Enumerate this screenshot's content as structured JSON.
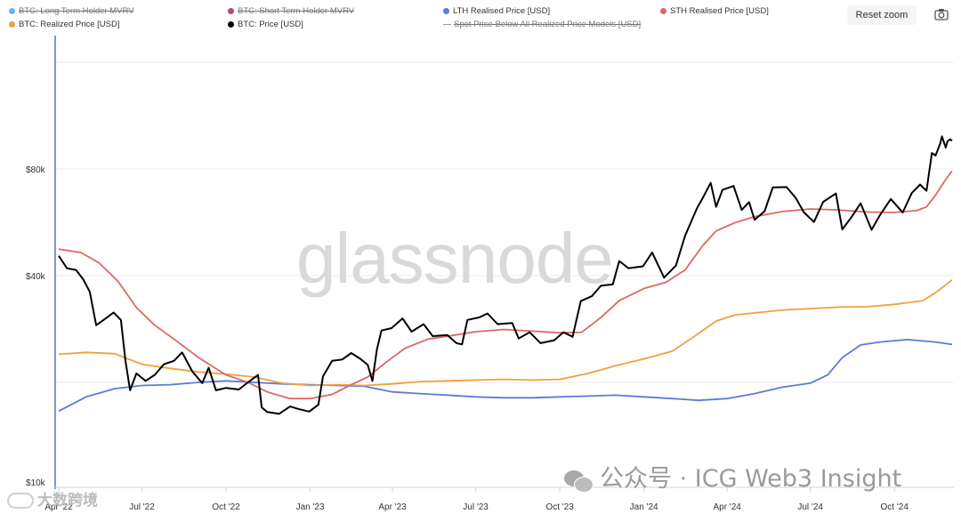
{
  "legend": [
    {
      "label": "BTC: Long Term Holder MVRV",
      "color": "#4db3e6",
      "hidden": true
    },
    {
      "label": "BTC: Short Term Holder MVRV",
      "color": "#a8326e",
      "hidden": true
    },
    {
      "label": "LTH Realised Price [USD]",
      "color": "#5b7bd5",
      "hidden": false
    },
    {
      "label": "STH Realised Price [USD]",
      "color": "#e06666",
      "hidden": false
    },
    {
      "label": "BTC: Realized Price [USD]",
      "color": "#f0a040",
      "hidden": false
    },
    {
      "label": "BTC: Price [USD]",
      "color": "#000000",
      "hidden": false
    },
    {
      "label": "Spot Price Below All Realized Price Models [USD]",
      "color": "#999999",
      "hidden": true
    }
  ],
  "toolbar": {
    "reset_zoom_label": "Reset zoom",
    "camera_icon": "camera-icon"
  },
  "watermarks": {
    "brand": "glassnode",
    "wechat_text": "公众号 · ICG Web3 Insight",
    "corner_text": "大数跨境"
  },
  "chart_data": {
    "type": "line",
    "title": "",
    "xlabel": "",
    "ylabel": "",
    "y_scale": "log",
    "yticks": [
      {
        "value": 10000,
        "label": "$10k"
      },
      {
        "value": 40000,
        "label": "$40k"
      },
      {
        "value": 80000,
        "label": "$80k"
      }
    ],
    "ylim": [
      10000,
      140000
    ],
    "xlim": [
      "2022-04-01",
      "2024-12-05"
    ],
    "xticks": [
      {
        "date": "2022-04-01",
        "label": "Apr '22"
      },
      {
        "date": "2022-07-01",
        "label": "Jul '22"
      },
      {
        "date": "2022-10-01",
        "label": "Oct '22"
      },
      {
        "date": "2023-01-01",
        "label": "Jan '23"
      },
      {
        "date": "2023-04-01",
        "label": "Apr '23"
      },
      {
        "date": "2023-07-01",
        "label": "Jul '23"
      },
      {
        "date": "2023-10-01",
        "label": "Oct '23"
      },
      {
        "date": "2024-01-01",
        "label": "Jan '24"
      },
      {
        "date": "2024-04-01",
        "label": "Apr '24"
      },
      {
        "date": "2024-07-01",
        "label": "Jul '24"
      },
      {
        "date": "2024-10-01",
        "label": "Oct '24"
      }
    ],
    "grid": true,
    "legend_position": "top",
    "series": [
      {
        "name": "BTC: Price [USD]",
        "color": "#000000",
        "points": [
          [
            "2022-04-01",
            45500
          ],
          [
            "2022-04-10",
            42000
          ],
          [
            "2022-04-20",
            41500
          ],
          [
            "2022-04-28",
            39000
          ],
          [
            "2022-05-05",
            36000
          ],
          [
            "2022-05-12",
            29000
          ],
          [
            "2022-05-20",
            30000
          ],
          [
            "2022-05-31",
            31500
          ],
          [
            "2022-06-08",
            30000
          ],
          [
            "2022-06-13",
            23000
          ],
          [
            "2022-06-18",
            19000
          ],
          [
            "2022-06-25",
            21200
          ],
          [
            "2022-07-05",
            20200
          ],
          [
            "2022-07-15",
            21000
          ],
          [
            "2022-07-25",
            22500
          ],
          [
            "2022-08-05",
            23000
          ],
          [
            "2022-08-14",
            24300
          ],
          [
            "2022-08-25",
            21500
          ],
          [
            "2022-09-05",
            19900
          ],
          [
            "2022-09-12",
            22000
          ],
          [
            "2022-09-20",
            19000
          ],
          [
            "2022-10-01",
            19300
          ],
          [
            "2022-10-15",
            19100
          ],
          [
            "2022-10-25",
            20000
          ],
          [
            "2022-11-05",
            21000
          ],
          [
            "2022-11-09",
            17000
          ],
          [
            "2022-11-15",
            16500
          ],
          [
            "2022-11-28",
            16300
          ],
          [
            "2022-12-10",
            17100
          ],
          [
            "2022-12-20",
            16800
          ],
          [
            "2022-12-31",
            16550
          ],
          [
            "2023-01-10",
            17300
          ],
          [
            "2023-01-15",
            20800
          ],
          [
            "2023-01-25",
            23000
          ],
          [
            "2023-02-05",
            23200
          ],
          [
            "2023-02-15",
            24200
          ],
          [
            "2023-02-25",
            23300
          ],
          [
            "2023-03-05",
            22400
          ],
          [
            "2023-03-10",
            20200
          ],
          [
            "2023-03-15",
            24800
          ],
          [
            "2023-03-20",
            28000
          ],
          [
            "2023-03-31",
            28450
          ],
          [
            "2023-04-12",
            30300
          ],
          [
            "2023-04-22",
            27800
          ],
          [
            "2023-05-05",
            29200
          ],
          [
            "2023-05-15",
            27000
          ],
          [
            "2023-05-31",
            27200
          ],
          [
            "2023-06-10",
            25800
          ],
          [
            "2023-06-16",
            25600
          ],
          [
            "2023-06-22",
            30000
          ],
          [
            "2023-07-05",
            30500
          ],
          [
            "2023-07-14",
            31300
          ],
          [
            "2023-07-25",
            29200
          ],
          [
            "2023-08-10",
            29400
          ],
          [
            "2023-08-17",
            26600
          ],
          [
            "2023-08-29",
            27700
          ],
          [
            "2023-09-10",
            25800
          ],
          [
            "2023-09-25",
            26300
          ],
          [
            "2023-10-05",
            27700
          ],
          [
            "2023-10-15",
            26900
          ],
          [
            "2023-10-24",
            33900
          ],
          [
            "2023-11-05",
            35000
          ],
          [
            "2023-11-15",
            37500
          ],
          [
            "2023-11-28",
            37800
          ],
          [
            "2023-12-05",
            44000
          ],
          [
            "2023-12-15",
            42000
          ],
          [
            "2023-12-31",
            42500
          ],
          [
            "2024-01-10",
            46500
          ],
          [
            "2024-01-23",
            39500
          ],
          [
            "2024-02-05",
            42700
          ],
          [
            "2024-02-15",
            51800
          ],
          [
            "2024-02-28",
            62000
          ],
          [
            "2024-03-05",
            66000
          ],
          [
            "2024-03-14",
            73100
          ],
          [
            "2024-03-20",
            62500
          ],
          [
            "2024-03-27",
            69900
          ],
          [
            "2024-04-08",
            71600
          ],
          [
            "2024-04-17",
            61300
          ],
          [
            "2024-04-25",
            64500
          ],
          [
            "2024-05-01",
            57500
          ],
          [
            "2024-05-12",
            60800
          ],
          [
            "2024-05-21",
            71000
          ],
          [
            "2024-06-05",
            71100
          ],
          [
            "2024-06-15",
            66300
          ],
          [
            "2024-06-24",
            60300
          ],
          [
            "2024-07-05",
            56700
          ],
          [
            "2024-07-15",
            64600
          ],
          [
            "2024-07-29",
            68200
          ],
          [
            "2024-08-05",
            54000
          ],
          [
            "2024-08-15",
            58500
          ],
          [
            "2024-08-25",
            64000
          ],
          [
            "2024-09-06",
            53900
          ],
          [
            "2024-09-15",
            59200
          ],
          [
            "2024-09-27",
            65800
          ],
          [
            "2024-10-10",
            60300
          ],
          [
            "2024-10-20",
            68400
          ],
          [
            "2024-10-29",
            72300
          ],
          [
            "2024-11-05",
            69400
          ],
          [
            "2024-11-11",
            88700
          ],
          [
            "2024-11-15",
            87300
          ],
          [
            "2024-11-20",
            94300
          ],
          [
            "2024-11-22",
            98900
          ],
          [
            "2024-11-26",
            91900
          ],
          [
            "2024-11-28",
            95700
          ],
          [
            "2024-12-01",
            97000
          ],
          [
            "2024-12-03",
            96000
          ]
        ]
      },
      {
        "name": "STH Realised Price [USD]",
        "color": "#e06666",
        "points": [
          [
            "2022-04-01",
            47500
          ],
          [
            "2022-04-25",
            46500
          ],
          [
            "2022-05-15",
            43500
          ],
          [
            "2022-06-05",
            38500
          ],
          [
            "2022-06-25",
            32500
          ],
          [
            "2022-07-15",
            29000
          ],
          [
            "2022-08-05",
            26500
          ],
          [
            "2022-09-01",
            23500
          ],
          [
            "2022-10-01",
            21000
          ],
          [
            "2022-10-25",
            20000
          ],
          [
            "2022-11-15",
            18800
          ],
          [
            "2022-12-10",
            18000
          ],
          [
            "2023-01-01",
            18000
          ],
          [
            "2023-01-25",
            18500
          ],
          [
            "2023-02-15",
            19700
          ],
          [
            "2023-03-05",
            20700
          ],
          [
            "2023-03-25",
            22800
          ],
          [
            "2023-04-15",
            25000
          ],
          [
            "2023-05-10",
            26500
          ],
          [
            "2023-06-01",
            27000
          ],
          [
            "2023-07-01",
            27800
          ],
          [
            "2023-08-01",
            28200
          ],
          [
            "2023-09-01",
            27900
          ],
          [
            "2023-10-01",
            27600
          ],
          [
            "2023-10-25",
            27700
          ],
          [
            "2023-11-15",
            30500
          ],
          [
            "2023-12-05",
            34000
          ],
          [
            "2024-01-01",
            36800
          ],
          [
            "2024-01-25",
            38300
          ],
          [
            "2024-02-15",
            41500
          ],
          [
            "2024-03-05",
            48500
          ],
          [
            "2024-03-20",
            53500
          ],
          [
            "2024-04-10",
            56500
          ],
          [
            "2024-05-01",
            58700
          ],
          [
            "2024-06-01",
            60700
          ],
          [
            "2024-07-01",
            61700
          ],
          [
            "2024-08-01",
            61300
          ],
          [
            "2024-09-01",
            60500
          ],
          [
            "2024-10-01",
            60300
          ],
          [
            "2024-10-25",
            61000
          ],
          [
            "2024-11-05",
            62500
          ],
          [
            "2024-11-15",
            67500
          ],
          [
            "2024-11-25",
            74000
          ],
          [
            "2024-12-03",
            79000
          ]
        ]
      },
      {
        "name": "BTC: Realized Price [USD]",
        "color": "#f0a040",
        "points": [
          [
            "2022-04-01",
            24000
          ],
          [
            "2022-05-01",
            24300
          ],
          [
            "2022-06-01",
            24100
          ],
          [
            "2022-07-01",
            22500
          ],
          [
            "2022-08-01",
            21900
          ],
          [
            "2022-09-01",
            21400
          ],
          [
            "2022-10-01",
            21100
          ],
          [
            "2022-11-01",
            20700
          ],
          [
            "2022-12-01",
            19900
          ],
          [
            "2023-01-01",
            19600
          ],
          [
            "2023-02-01",
            19700
          ],
          [
            "2023-03-01",
            19600
          ],
          [
            "2023-04-01",
            19800
          ],
          [
            "2023-05-01",
            20100
          ],
          [
            "2023-06-01",
            20200
          ],
          [
            "2023-07-01",
            20300
          ],
          [
            "2023-08-01",
            20400
          ],
          [
            "2023-09-01",
            20300
          ],
          [
            "2023-10-01",
            20400
          ],
          [
            "2023-11-01",
            21200
          ],
          [
            "2023-12-01",
            22300
          ],
          [
            "2024-01-01",
            23300
          ],
          [
            "2024-02-01",
            24500
          ],
          [
            "2024-03-01",
            27500
          ],
          [
            "2024-03-20",
            29800
          ],
          [
            "2024-04-10",
            31000
          ],
          [
            "2024-05-01",
            31400
          ],
          [
            "2024-06-01",
            32000
          ],
          [
            "2024-07-01",
            32300
          ],
          [
            "2024-08-01",
            32600
          ],
          [
            "2024-09-01",
            32700
          ],
          [
            "2024-10-01",
            33200
          ],
          [
            "2024-11-01",
            34000
          ],
          [
            "2024-11-15",
            35800
          ],
          [
            "2024-12-03",
            38900
          ]
        ]
      },
      {
        "name": "LTH Realised Price [USD]",
        "color": "#5b7bd5",
        "points": [
          [
            "2022-04-01",
            16600
          ],
          [
            "2022-05-01",
            18200
          ],
          [
            "2022-06-01",
            19200
          ],
          [
            "2022-07-01",
            19600
          ],
          [
            "2022-08-01",
            19700
          ],
          [
            "2022-09-01",
            20000
          ],
          [
            "2022-10-01",
            20200
          ],
          [
            "2022-11-01",
            20000
          ],
          [
            "2022-12-01",
            19800
          ],
          [
            "2023-01-01",
            19700
          ],
          [
            "2023-02-01",
            19600
          ],
          [
            "2023-03-01",
            19500
          ],
          [
            "2023-04-01",
            18800
          ],
          [
            "2023-05-01",
            18600
          ],
          [
            "2023-06-01",
            18400
          ],
          [
            "2023-07-01",
            18200
          ],
          [
            "2023-08-01",
            18100
          ],
          [
            "2023-09-01",
            18100
          ],
          [
            "2023-10-01",
            18200
          ],
          [
            "2023-11-01",
            18300
          ],
          [
            "2023-12-01",
            18400
          ],
          [
            "2024-01-01",
            18200
          ],
          [
            "2024-02-01",
            18000
          ],
          [
            "2024-03-01",
            17800
          ],
          [
            "2024-04-01",
            18000
          ],
          [
            "2024-05-01",
            18600
          ],
          [
            "2024-06-01",
            19400
          ],
          [
            "2024-07-01",
            19900
          ],
          [
            "2024-07-20",
            21000
          ],
          [
            "2024-08-05",
            23500
          ],
          [
            "2024-08-25",
            25500
          ],
          [
            "2024-09-15",
            26000
          ],
          [
            "2024-10-15",
            26400
          ],
          [
            "2024-11-15",
            26000
          ],
          [
            "2024-12-03",
            25600
          ]
        ]
      }
    ]
  }
}
